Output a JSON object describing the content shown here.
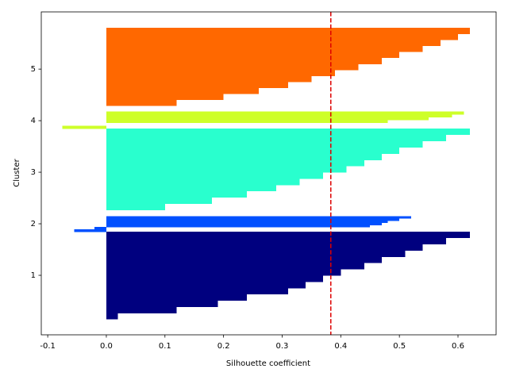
{
  "chart_data": {
    "type": "silhouette",
    "xlabel": "Silhouette coefficient",
    "ylabel": "Cluster",
    "xlim": [
      -0.111,
      0.665
    ],
    "ylim": [
      -0.154,
      6.11
    ],
    "xticks": [
      -0.1,
      {
        "value": 0,
        "label": "0.0"
      },
      0.1,
      0.2,
      0.3,
      0.4,
      0.5,
      0.6
    ],
    "yticks": [
      1,
      2,
      3,
      4,
      5
    ],
    "series": [
      {
        "color": "#00007f",
        "band": [
          0.15,
          1.85
        ],
        "values": [
          0.02,
          0.12,
          0.19,
          0.24,
          0.31,
          0.34,
          0.37,
          0.4,
          0.44,
          0.47,
          0.51,
          0.54,
          0.58,
          0.62
        ]
      },
      {
        "color": "#0050ff",
        "band": [
          1.85,
          2.15
        ],
        "values": [
          -0.055,
          -0.02,
          0.45,
          0.47,
          0.48,
          0.5,
          0.52
        ]
      },
      {
        "color": "#29ffce",
        "band": [
          2.15,
          3.85
        ],
        "values": [
          0.0,
          0.1,
          0.18,
          0.24,
          0.29,
          0.33,
          0.37,
          0.41,
          0.44,
          0.47,
          0.5,
          0.54,
          0.58,
          0.62
        ]
      },
      {
        "color": "#ceff29",
        "band": [
          3.85,
          4.18
        ],
        "values": [
          -0.075,
          0.0,
          0.48,
          0.55,
          0.59,
          0.61
        ]
      },
      {
        "color": "#ff6800",
        "band": [
          4.18,
          5.8
        ],
        "values": [
          0.0,
          0.12,
          0.2,
          0.26,
          0.31,
          0.35,
          0.39,
          0.43,
          0.47,
          0.5,
          0.54,
          0.57,
          0.6,
          0.62
        ]
      }
    ],
    "mean_line": {
      "value": 0.383,
      "color": "#dd0000"
    }
  }
}
